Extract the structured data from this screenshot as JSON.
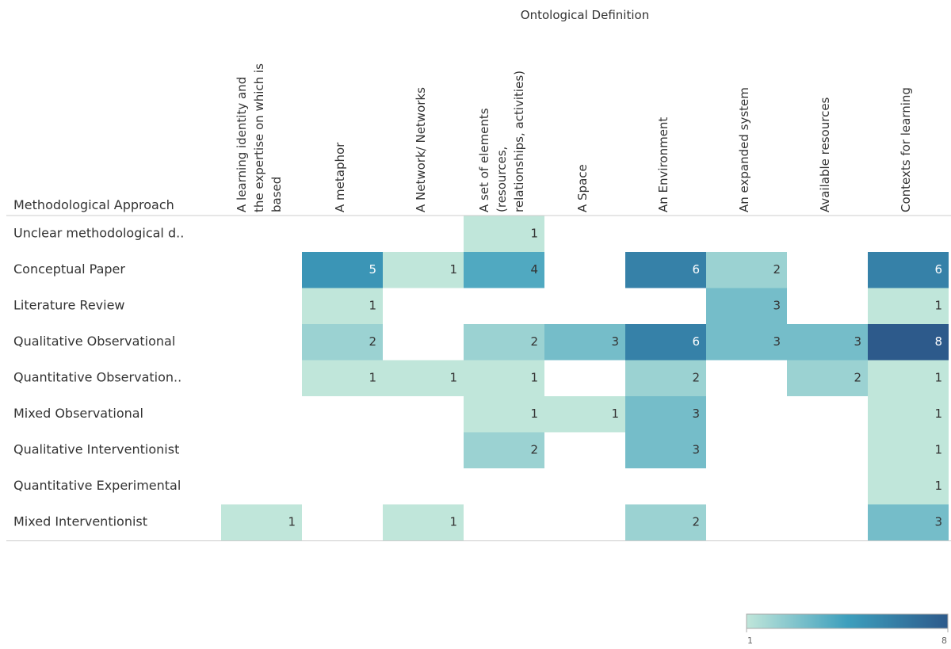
{
  "chart_data": {
    "type": "heatmap",
    "title": "Ontological Definition",
    "y_label": "Methodological Approach",
    "columns": [
      [
        "A learning identity and",
        "the expertise on which is",
        "based"
      ],
      [
        "A metaphor"
      ],
      [
        "A Network/ Networks"
      ],
      [
        "A set of elements",
        "(resources,",
        "relationships, activities)"
      ],
      [
        "A Space"
      ],
      [
        "An Environment"
      ],
      [
        "An expanded system"
      ],
      [
        "Available resources"
      ],
      [
        "Contexts for learning"
      ]
    ],
    "rows": [
      "Unclear methodological d..",
      "Conceptual Paper",
      "Literature Review",
      "Qualitative Observational",
      "Quantitative Observation..",
      "Mixed Observational",
      "Qualitative Interventionist",
      "Quantitative Experimental",
      "Mixed Interventionist"
    ],
    "values": [
      [
        null,
        null,
        null,
        1,
        null,
        null,
        null,
        null,
        null
      ],
      [
        null,
        5,
        1,
        4,
        null,
        6,
        2,
        null,
        6
      ],
      [
        null,
        1,
        null,
        null,
        null,
        null,
        3,
        null,
        1
      ],
      [
        null,
        2,
        null,
        2,
        3,
        6,
        3,
        3,
        8
      ],
      [
        null,
        1,
        1,
        1,
        null,
        2,
        null,
        2,
        1
      ],
      [
        null,
        null,
        null,
        1,
        1,
        3,
        null,
        null,
        1
      ],
      [
        null,
        null,
        null,
        2,
        null,
        3,
        null,
        null,
        1
      ],
      [
        null,
        null,
        null,
        null,
        null,
        null,
        null,
        null,
        1
      ],
      [
        1,
        null,
        1,
        null,
        null,
        2,
        null,
        null,
        3
      ]
    ],
    "colors": [
      "#c0e6da",
      "#3d9fbd",
      "#2d5a8b"
    ],
    "color_range": [
      1,
      8
    ],
    "color_ticks": [
      1,
      8
    ]
  }
}
